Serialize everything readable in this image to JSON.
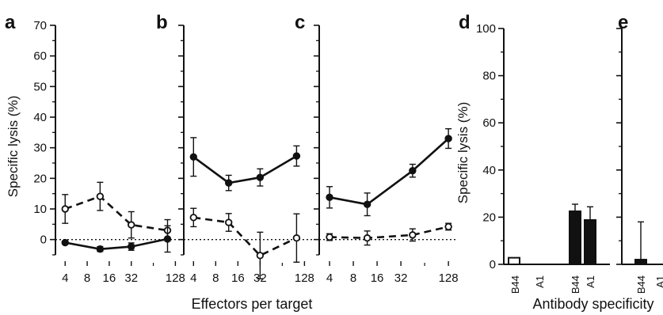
{
  "figure": {
    "shared_xlabel": "Effectors per target",
    "shared_xlabel_de": "Antibody specificity"
  },
  "chart_data": [
    {
      "panel": "a",
      "type": "line",
      "ylabel": "Specific lysis (%)",
      "ylim": [
        -5,
        70
      ],
      "yticks": [
        0,
        10,
        20,
        30,
        40,
        50,
        60,
        70
      ],
      "x_scale": "log2",
      "xticks": [
        4,
        8,
        16,
        32,
        128
      ],
      "zero_line": "dotted",
      "series": [
        {
          "style": "open-dashed",
          "points": [
            {
              "x": 4,
              "y": 10,
              "err": 4.7
            },
            {
              "x": 12,
              "y": 14.1,
              "err": 4.6
            },
            {
              "x": 32,
              "y": 4.8,
              "err": 4.3
            },
            {
              "x": 100,
              "y": 3,
              "err": 3.5
            }
          ]
        },
        {
          "style": "filled-solid",
          "points": [
            {
              "x": 4,
              "y": -1,
              "err": 0.5
            },
            {
              "x": 12,
              "y": -3.1,
              "err": 0.8
            },
            {
              "x": 32,
              "y": -2.3,
              "err": 1.2
            },
            {
              "x": 100,
              "y": 0.2,
              "err": 4.3
            }
          ]
        }
      ]
    },
    {
      "panel": "b",
      "type": "line",
      "ylim": [
        -5,
        70
      ],
      "x_scale": "log2",
      "xticks": [
        4,
        8,
        16,
        32,
        128
      ],
      "zero_line": "dotted",
      "series": [
        {
          "style": "filled-solid",
          "points": [
            {
              "x": 4,
              "y": 27,
              "err": 6.3
            },
            {
              "x": 12,
              "y": 18.5,
              "err": 2.5
            },
            {
              "x": 32,
              "y": 20.3,
              "err": 2.8
            },
            {
              "x": 100,
              "y": 27.3,
              "err": 3.3
            }
          ]
        },
        {
          "style": "open-dashed",
          "points": [
            {
              "x": 4,
              "y": 7.2,
              "err": 3
            },
            {
              "x": 12,
              "y": 5.6,
              "err": 2.9
            },
            {
              "x": 32,
              "y": -5.2,
              "err": 7.6
            },
            {
              "x": 100,
              "y": 0.5,
              "err": 7.9
            }
          ]
        }
      ]
    },
    {
      "panel": "c",
      "type": "line",
      "ylim": [
        -5,
        70
      ],
      "x_scale": "log2",
      "xticks": [
        4,
        8,
        16,
        32,
        128
      ],
      "zero_line": "dotted",
      "series": [
        {
          "style": "filled-solid",
          "points": [
            {
              "x": 4,
              "y": 13.8,
              "err": 3.5
            },
            {
              "x": 12,
              "y": 11.5,
              "err": 3.7
            },
            {
              "x": 45,
              "y": 22.5,
              "err": 2.1
            },
            {
              "x": 128,
              "y": 33,
              "err": 3.2
            }
          ]
        },
        {
          "style": "open-dashed",
          "points": [
            {
              "x": 4,
              "y": 0.8,
              "err": 1.1
            },
            {
              "x": 12,
              "y": 0.5,
              "err": 2.3
            },
            {
              "x": 45,
              "y": 1.5,
              "err": 2
            },
            {
              "x": 128,
              "y": 4.2,
              "err": 1.1
            }
          ]
        }
      ]
    },
    {
      "panel": "d",
      "type": "bar",
      "ylabel": "Specific lysis (%)",
      "ylim": [
        0,
        100
      ],
      "yticks": [
        0,
        20,
        40,
        60,
        80,
        100
      ],
      "bars": [
        {
          "label": "B44",
          "value": 2.8,
          "err": 0,
          "fill": "open"
        },
        {
          "label": "A1",
          "value": 0,
          "err": 0,
          "fill": "open"
        },
        {
          "label": "B44",
          "value": 22.5,
          "err": 3,
          "fill": "solid"
        },
        {
          "label": "A1",
          "value": 18.8,
          "err": 5.6,
          "fill": "solid"
        }
      ]
    },
    {
      "panel": "e",
      "type": "bar",
      "ylim": [
        0,
        100
      ],
      "bars": [
        {
          "label": "B44",
          "value": 2,
          "err": 16,
          "fill": "solid"
        },
        {
          "label": "A1",
          "value": 0,
          "err": 0,
          "fill": "solid"
        }
      ]
    }
  ]
}
